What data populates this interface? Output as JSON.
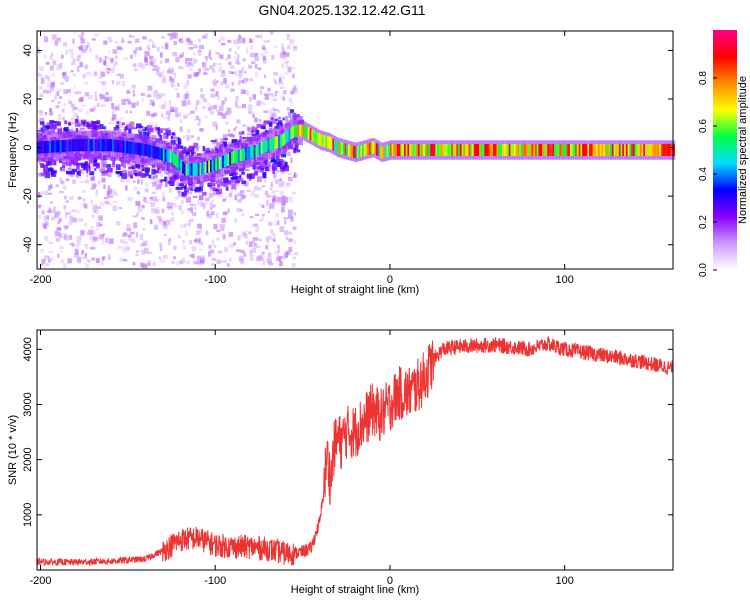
{
  "title": "GN04.2025.132.12.42.G11",
  "chart_data": [
    {
      "type": "heatmap",
      "xlabel": "Height of straight line (km)",
      "ylabel": "Frequency (Hz)",
      "xlim": [
        -202,
        162
      ],
      "ylim": [
        -50,
        48
      ],
      "xticks": [
        -200,
        -100,
        0,
        100
      ],
      "yticks": [
        -40,
        -20,
        0,
        20,
        40
      ],
      "colorbar": {
        "label": "Normalized spectral amplitude",
        "range": [
          0.0,
          1.0
        ],
        "ticks": [
          0.0,
          0.2,
          0.4,
          0.6,
          0.8
        ],
        "colors": [
          "#ffffff",
          "#cc99ff",
          "#8800ff",
          "#0000ff",
          "#00ddff",
          "#00ff44",
          "#ffff00",
          "#ff8800",
          "#ff0000",
          "#ff0088"
        ]
      },
      "ridge": {
        "x": [
          -202,
          -180,
          -160,
          -140,
          -125,
          -118,
          -110,
          -100,
          -90,
          -80,
          -70,
          -62,
          -55,
          -50,
          -45,
          -40,
          -35,
          -30,
          -25,
          -20,
          -15,
          -10,
          -5,
          0,
          10,
          20,
          40,
          60,
          80,
          100,
          120,
          140,
          162
        ],
        "y": [
          0,
          1,
          1,
          -1,
          -4,
          -9,
          -9,
          -7,
          -4,
          -2,
          1,
          3,
          7,
          7,
          5,
          3,
          2,
          0,
          -1,
          -2,
          -1,
          0,
          -2,
          -1,
          -1,
          -1,
          -1,
          -1,
          -1,
          -1,
          -1,
          -1,
          -1
        ]
      }
    },
    {
      "type": "line",
      "xlabel": "Height of straight line (km)",
      "ylabel": "SNR (10 * v/v)",
      "xlim": [
        -202,
        162
      ],
      "ylim": [
        0,
        4350
      ],
      "xticks": [
        -200,
        -100,
        0,
        100
      ],
      "yticks": [
        1000,
        2000,
        3000,
        4000
      ],
      "color": "#ee3333",
      "series": [
        {
          "x": [
            -202,
            -180,
            -160,
            -140,
            -130,
            -120,
            -110,
            -100,
            -90,
            -80,
            -70,
            -60,
            -55,
            -50,
            -45,
            -40,
            -38,
            -36,
            -34,
            -32,
            -30,
            -28,
            -25,
            -20,
            -15,
            -10,
            -5,
            0,
            5,
            10,
            15,
            20,
            25,
            30,
            40,
            60,
            80,
            90,
            100,
            120,
            140,
            162
          ],
          "y": [
            150,
            140,
            160,
            200,
            350,
            550,
            580,
            450,
            420,
            420,
            380,
            300,
            300,
            330,
            400,
            900,
            1400,
            2100,
            1600,
            2200,
            2400,
            2300,
            2500,
            2500,
            2700,
            2900,
            2800,
            3000,
            3200,
            3200,
            3300,
            3500,
            3800,
            4000,
            4050,
            4080,
            4000,
            4100,
            4000,
            3900,
            3800,
            3650
          ]
        }
      ]
    }
  ]
}
